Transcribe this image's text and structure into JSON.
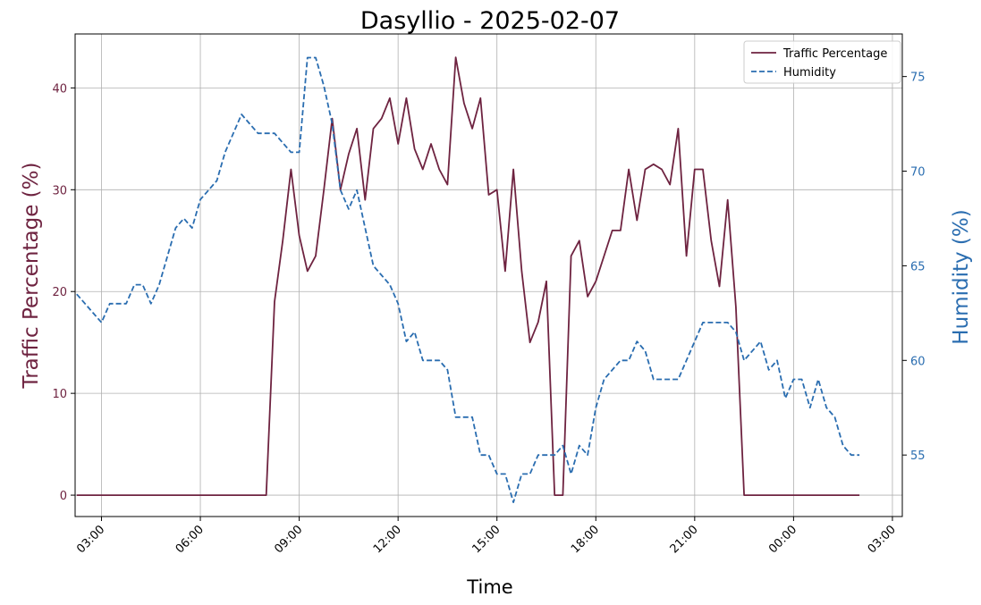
{
  "chart_data": {
    "type": "line",
    "title": "Dasyllio - 2025-02-07",
    "xlabel": "Time",
    "ylabel_left": "Traffic Percentage (%)",
    "ylabel_right": "Humidity (%)",
    "x_ticks": [
      "03:00",
      "06:00",
      "09:00",
      "12:00",
      "15:00",
      "18:00",
      "21:00",
      "00:00",
      "03:00"
    ],
    "y_left_ticks": [
      0,
      10,
      20,
      30,
      40
    ],
    "y_right_ticks": [
      55,
      60,
      65,
      70,
      75
    ],
    "ylim_left": [
      -2.1,
      45.3
    ],
    "ylim_right": [
      51.75,
      77.25
    ],
    "x_time_range": [
      "2025-02-07 02:12",
      "2025-02-08 03:18"
    ],
    "grid": true,
    "legend_position": "top-right",
    "colors": {
      "traffic": "#6e2340",
      "humidity": "#2a6db0",
      "left_axis_label": "#6e2340",
      "right_axis_label": "#2a6db0",
      "grid": "#b0b0b0"
    },
    "series": [
      {
        "name": "Traffic Percentage",
        "axis": "left",
        "style": "solid",
        "x": [
          "2025-02-07 02:15",
          "2025-02-07 02:30",
          "2025-02-07 02:45",
          "2025-02-07 03:00",
          "2025-02-07 03:15",
          "2025-02-07 03:30",
          "2025-02-07 03:45",
          "2025-02-07 04:00",
          "2025-02-07 04:15",
          "2025-02-07 04:30",
          "2025-02-07 04:45",
          "2025-02-07 05:00",
          "2025-02-07 05:15",
          "2025-02-07 05:30",
          "2025-02-07 05:45",
          "2025-02-07 06:00",
          "2025-02-07 06:15",
          "2025-02-07 06:30",
          "2025-02-07 06:45",
          "2025-02-07 07:00",
          "2025-02-07 07:15",
          "2025-02-07 07:30",
          "2025-02-07 07:45",
          "2025-02-07 08:00",
          "2025-02-07 08:15",
          "2025-02-07 08:30",
          "2025-02-07 08:45",
          "2025-02-07 09:00",
          "2025-02-07 09:15",
          "2025-02-07 09:30",
          "2025-02-07 09:45",
          "2025-02-07 10:00",
          "2025-02-07 10:15",
          "2025-02-07 10:30",
          "2025-02-07 10:45",
          "2025-02-07 11:00",
          "2025-02-07 11:15",
          "2025-02-07 11:30",
          "2025-02-07 11:45",
          "2025-02-07 12:00",
          "2025-02-07 12:15",
          "2025-02-07 12:30",
          "2025-02-07 12:45",
          "2025-02-07 13:00",
          "2025-02-07 13:15",
          "2025-02-07 13:30",
          "2025-02-07 13:45",
          "2025-02-07 14:00",
          "2025-02-07 14:15",
          "2025-02-07 14:30",
          "2025-02-07 14:45",
          "2025-02-07 15:00",
          "2025-02-07 15:15",
          "2025-02-07 15:30",
          "2025-02-07 15:45",
          "2025-02-07 16:00",
          "2025-02-07 16:15",
          "2025-02-07 16:30",
          "2025-02-07 16:45",
          "2025-02-07 17:00",
          "2025-02-07 17:15",
          "2025-02-07 17:30",
          "2025-02-07 17:45",
          "2025-02-07 18:00",
          "2025-02-07 18:15",
          "2025-02-07 18:30",
          "2025-02-07 18:45",
          "2025-02-07 19:00",
          "2025-02-07 19:15",
          "2025-02-07 19:30",
          "2025-02-07 19:45",
          "2025-02-07 20:00",
          "2025-02-07 20:15",
          "2025-02-07 20:30",
          "2025-02-07 20:45",
          "2025-02-07 21:00",
          "2025-02-07 21:15",
          "2025-02-07 21:30",
          "2025-02-07 21:45",
          "2025-02-07 22:00",
          "2025-02-07 22:15",
          "2025-02-07 22:30",
          "2025-02-07 22:45",
          "2025-02-07 23:00",
          "2025-02-07 23:15",
          "2025-02-07 23:30",
          "2025-02-07 23:45",
          "2025-02-08 00:00",
          "2025-02-08 00:15",
          "2025-02-08 00:30",
          "2025-02-08 00:45",
          "2025-02-08 01:00",
          "2025-02-08 01:15",
          "2025-02-08 01:30",
          "2025-02-08 01:45",
          "2025-02-08 02:00"
        ],
        "values": [
          0,
          0,
          0,
          0,
          0,
          0,
          0,
          0,
          0,
          0,
          0,
          0,
          0,
          0,
          0,
          0,
          0,
          0,
          0,
          0,
          0,
          0,
          0,
          0,
          19,
          25,
          32,
          25.5,
          22,
          23.5,
          30,
          37,
          30,
          33.5,
          36,
          29,
          36,
          37,
          39,
          34.5,
          39,
          34,
          32,
          34.5,
          32,
          30.5,
          43,
          38.5,
          36,
          39,
          29.5,
          30,
          22,
          32,
          22,
          15,
          17,
          21,
          0,
          0,
          23.5,
          25,
          19.5,
          21,
          23.5,
          26,
          26,
          32,
          27,
          32,
          32.5,
          32,
          30.5,
          36,
          23.5,
          32,
          32,
          25,
          20.5,
          29,
          18.5,
          0,
          0,
          0,
          0,
          0,
          0,
          0,
          0,
          0,
          0,
          0,
          0,
          0,
          0,
          0
        ]
      },
      {
        "name": "Humidity",
        "axis": "right",
        "style": "dashed",
        "x": [
          "2025-02-07 02:15",
          "2025-02-07 02:30",
          "2025-02-07 02:45",
          "2025-02-07 03:00",
          "2025-02-07 03:15",
          "2025-02-07 03:30",
          "2025-02-07 03:45",
          "2025-02-07 04:00",
          "2025-02-07 04:15",
          "2025-02-07 04:30",
          "2025-02-07 04:45",
          "2025-02-07 05:00",
          "2025-02-07 05:15",
          "2025-02-07 05:30",
          "2025-02-07 05:45",
          "2025-02-07 06:00",
          "2025-02-07 06:15",
          "2025-02-07 06:30",
          "2025-02-07 06:45",
          "2025-02-07 07:00",
          "2025-02-07 07:15",
          "2025-02-07 07:30",
          "2025-02-07 07:45",
          "2025-02-07 08:00",
          "2025-02-07 08:15",
          "2025-02-07 08:30",
          "2025-02-07 08:45",
          "2025-02-07 09:00",
          "2025-02-07 09:15",
          "2025-02-07 09:30",
          "2025-02-07 09:45",
          "2025-02-07 10:00",
          "2025-02-07 10:15",
          "2025-02-07 10:30",
          "2025-02-07 10:45",
          "2025-02-07 11:00",
          "2025-02-07 11:15",
          "2025-02-07 11:30",
          "2025-02-07 11:45",
          "2025-02-07 12:00",
          "2025-02-07 12:15",
          "2025-02-07 12:30",
          "2025-02-07 12:45",
          "2025-02-07 13:00",
          "2025-02-07 13:15",
          "2025-02-07 13:30",
          "2025-02-07 13:45",
          "2025-02-07 14:00",
          "2025-02-07 14:15",
          "2025-02-07 14:30",
          "2025-02-07 14:45",
          "2025-02-07 15:00",
          "2025-02-07 15:15",
          "2025-02-07 15:30",
          "2025-02-07 15:45",
          "2025-02-07 16:00",
          "2025-02-07 16:15",
          "2025-02-07 16:30",
          "2025-02-07 16:45",
          "2025-02-07 17:00",
          "2025-02-07 17:15",
          "2025-02-07 17:30",
          "2025-02-07 17:45",
          "2025-02-07 18:00",
          "2025-02-07 18:15",
          "2025-02-07 18:30",
          "2025-02-07 18:45",
          "2025-02-07 19:00",
          "2025-02-07 19:15",
          "2025-02-07 19:30",
          "2025-02-07 19:45",
          "2025-02-07 20:00",
          "2025-02-07 20:15",
          "2025-02-07 20:30",
          "2025-02-07 20:45",
          "2025-02-07 21:00",
          "2025-02-07 21:15",
          "2025-02-07 21:30",
          "2025-02-07 21:45",
          "2025-02-07 22:00",
          "2025-02-07 22:15",
          "2025-02-07 22:30",
          "2025-02-07 22:45",
          "2025-02-07 23:00",
          "2025-02-07 23:15",
          "2025-02-07 23:30",
          "2025-02-07 23:45",
          "2025-02-08 00:00",
          "2025-02-08 00:15",
          "2025-02-08 00:30",
          "2025-02-08 00:45",
          "2025-02-08 01:00",
          "2025-02-08 01:15",
          "2025-02-08 01:30",
          "2025-02-08 01:45",
          "2025-02-08 02:00"
        ],
        "values": [
          63.5,
          63,
          62.5,
          62,
          63,
          63,
          63,
          64,
          64,
          63,
          64,
          65.5,
          67,
          67.5,
          67,
          68.5,
          69,
          69.5,
          71,
          72,
          73,
          72.5,
          72,
          72,
          72,
          71.5,
          71,
          71,
          76,
          76,
          74.5,
          72.5,
          69,
          68,
          69,
          67,
          65,
          64.5,
          64,
          63,
          61,
          61.5,
          60,
          60,
          60,
          59.5,
          57,
          57,
          57,
          55,
          55,
          54,
          54,
          52.5,
          54,
          54,
          55,
          55,
          55,
          55.5,
          54,
          55.5,
          55,
          57.5,
          59,
          59.5,
          60,
          60,
          61,
          60.5,
          59,
          59,
          59,
          59,
          60,
          61,
          62,
          62,
          62,
          62,
          61.5,
          60,
          60.5,
          61,
          59.5,
          60,
          58,
          59,
          59,
          57.5,
          59,
          57.5,
          57,
          55.5,
          55,
          55
        ]
      }
    ]
  }
}
